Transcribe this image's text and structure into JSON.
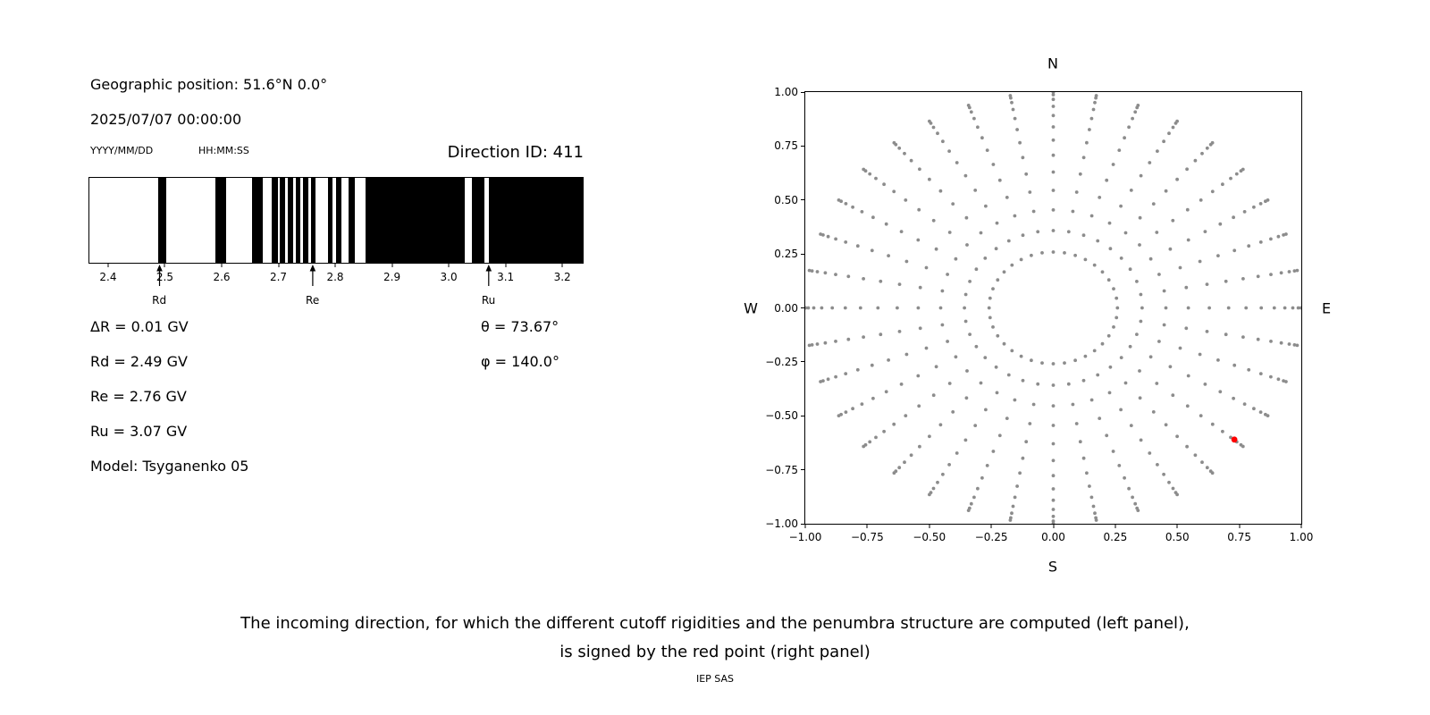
{
  "header": {
    "geo_position": "Geographic position: 51.6°N 0.0°",
    "datetime": "2025/07/07 00:00:00",
    "date_format": "YYYY/MM/DD",
    "time_format": "HH:MM:SS",
    "direction_id": "Direction ID: 411"
  },
  "info": {
    "delta_r": "ΔR = 0.01 GV",
    "rd": "Rd = 2.49 GV",
    "re": "Re = 2.76 GV",
    "ru": "Ru = 3.07 GV",
    "model": "Model: Tsyganenko 05",
    "theta": "θ = 73.67°",
    "phi": "φ = 140.0°"
  },
  "caption": {
    "line1": "The incoming direction, for which the different cutoff rigidities and the penumbra structure are computed (left panel),",
    "line2": "is signed by the red point (right panel)",
    "credit": "IEP SAS"
  },
  "chart_data": [
    {
      "id": "penumbra-panel",
      "type": "bar",
      "description": "Penumbra structure barcode: black bands are forbidden rigidity intervals, white gaps are allowed",
      "xlim": [
        2.367,
        3.236
      ],
      "xticks": [
        2.4,
        2.5,
        2.6,
        2.7,
        2.8,
        2.9,
        3.0,
        3.1,
        3.2
      ],
      "band_color": "#000000",
      "bands_gv": [
        [
          2.488,
          2.502
        ],
        [
          2.589,
          2.608
        ],
        [
          2.654,
          2.673
        ],
        [
          2.688,
          2.699
        ],
        [
          2.703,
          2.712
        ],
        [
          2.717,
          2.726
        ],
        [
          2.731,
          2.738
        ],
        [
          2.743,
          2.753
        ],
        [
          2.758,
          2.766
        ],
        [
          2.787,
          2.796
        ],
        [
          2.801,
          2.811
        ],
        [
          2.824,
          2.834
        ],
        [
          2.853,
          3.028
        ],
        [
          3.041,
          3.063
        ],
        [
          3.07,
          3.236
        ]
      ],
      "markers": [
        {
          "label": "Rd",
          "value_gv": 2.49
        },
        {
          "label": "Re",
          "value_gv": 2.76
        },
        {
          "label": "Ru",
          "value_gv": 3.07
        }
      ]
    },
    {
      "id": "direction-panel",
      "type": "scatter",
      "description": "Grid of possible incoming directions (gray dots) with the selected direction marked by a red point",
      "xlim": [
        -1,
        1
      ],
      "ylim": [
        -1,
        1
      ],
      "xtick_labels": [
        "−1.00",
        "−0.75",
        "−0.50",
        "−0.25",
        "0.00",
        "0.25",
        "0.50",
        "0.75",
        "1.00"
      ],
      "ytick_labels_top_to_bottom": [
        "1.00",
        "0.75",
        "0.50",
        "0.25",
        "0.00",
        "−0.25",
        "−0.50",
        "−0.75",
        "−1.00"
      ],
      "compass": {
        "north": "N",
        "south": "S",
        "east": "E",
        "west": "W"
      },
      "grid_dots": {
        "color": "#8c8c8c",
        "azimuth_start_deg": 0,
        "azimuth_step_deg": 10,
        "azimuth_count": 36,
        "zenith_start_deg": 15,
        "zenith_step_deg": 6,
        "zenith_count": 13,
        "radius_rule": "sin(zenith)"
      },
      "red_point": {
        "x": 0.73,
        "y": -0.61,
        "color": "#ff0000",
        "label": "selected incoming direction"
      }
    }
  ]
}
